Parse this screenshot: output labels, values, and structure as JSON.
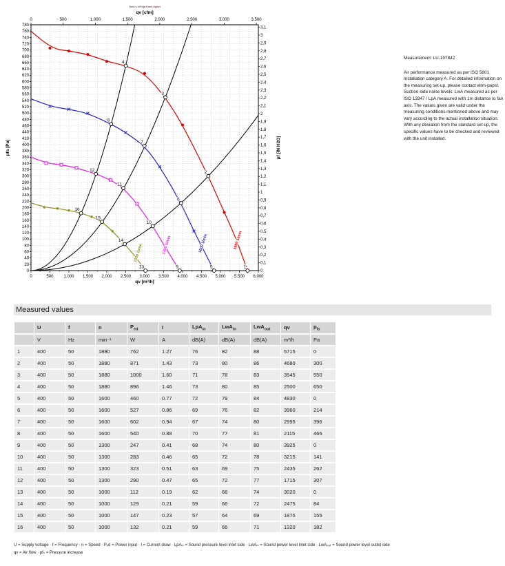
{
  "chart_data": {
    "type": "line",
    "micro_title": "Davt y h/Pdja Kiavt,Ugiert",
    "axes": {
      "top": {
        "label": "qv [cfm]",
        "min": 0,
        "max": 3500,
        "major": 500,
        "to_bottom_units": 1.699
      },
      "bottom": {
        "label": "qv [m³/h]",
        "min": 0,
        "max": 6000,
        "major": 500,
        "minor": 250
      },
      "left": {
        "label": "pfs [Pa]",
        "min": 0,
        "max": 780,
        "major": 20
      },
      "right": {
        "label": "pf [IN H2O]",
        "min": 0,
        "max": 3.1,
        "major": 0.1,
        "to_left_units": 249.089
      }
    },
    "grid": {
      "x_step": 250,
      "y_step": 20,
      "on": true
    },
    "legend_position": "labels-on-curves",
    "series": [
      {
        "name": "1880 1/min",
        "color": "#dd0000",
        "marker": "circle",
        "points": [
          [
            0,
            760
          ],
          [
            500,
            706
          ],
          [
            1000,
            697
          ],
          [
            1500,
            686
          ],
          [
            2000,
            664
          ],
          [
            2500,
            650
          ],
          [
            3000,
            626
          ],
          [
            3545,
            550
          ],
          [
            4000,
            462
          ],
          [
            4680,
            300
          ],
          [
            5100,
            185
          ],
          [
            5400,
            105
          ],
          [
            5715,
            0
          ]
        ],
        "markers": [
          [
            500,
            706
          ],
          [
            1000,
            697
          ],
          [
            1500,
            686
          ],
          [
            2000,
            664
          ],
          [
            3000,
            626
          ],
          [
            4000,
            462
          ],
          [
            5100,
            185
          ]
        ],
        "label_at": [
          5480,
          95
        ],
        "label_angle": -72
      },
      {
        "name": "1600 1/min",
        "color": "#2222cc",
        "marker": "cross",
        "points": [
          [
            0,
            545
          ],
          [
            500,
            521
          ],
          [
            1000,
            512
          ],
          [
            1500,
            499
          ],
          [
            2115,
            465
          ],
          [
            2500,
            438
          ],
          [
            2995,
            396
          ],
          [
            3400,
            330
          ],
          [
            3960,
            214
          ],
          [
            4300,
            125
          ],
          [
            4830,
            0
          ]
        ],
        "markers": [
          [
            500,
            521
          ],
          [
            1000,
            512
          ],
          [
            1500,
            499
          ],
          [
            2500,
            438
          ],
          [
            3400,
            330
          ],
          [
            4300,
            125
          ]
        ],
        "label_at": [
          4560,
          85
        ],
        "label_angle": -72
      },
      {
        "name": "1300 1/min",
        "color": "#e31ae3",
        "marker": "square",
        "points": [
          [
            0,
            360
          ],
          [
            400,
            341
          ],
          [
            800,
            336
          ],
          [
            1200,
            326
          ],
          [
            1715,
            307
          ],
          [
            2100,
            288
          ],
          [
            2435,
            262
          ],
          [
            2800,
            212
          ],
          [
            3215,
            141
          ],
          [
            3550,
            72
          ],
          [
            3925,
            0
          ]
        ],
        "markers": [
          [
            400,
            341
          ],
          [
            800,
            336
          ],
          [
            1200,
            326
          ],
          [
            2100,
            288
          ],
          [
            2800,
            212
          ],
          [
            3550,
            72
          ]
        ],
        "label_at": [
          3600,
          80
        ],
        "label_angle": -72
      },
      {
        "name": "1000 1/min",
        "color": "#8f8f1f",
        "marker": "dot",
        "points": [
          [
            0,
            215
          ],
          [
            350,
            201
          ],
          [
            700,
            197
          ],
          [
            1000,
            191
          ],
          [
            1320,
            182
          ],
          [
            1600,
            171
          ],
          [
            1875,
            155
          ],
          [
            2150,
            125
          ],
          [
            2475,
            84
          ],
          [
            2750,
            45
          ],
          [
            3020,
            0
          ]
        ],
        "markers": [
          [
            350,
            201
          ],
          [
            700,
            197
          ],
          [
            1000,
            191
          ],
          [
            1600,
            171
          ],
          [
            2150,
            125
          ],
          [
            2750,
            45
          ]
        ],
        "label_at": [
          2850,
          55
        ],
        "label_angle": -72
      }
    ],
    "system_curves": [
      {
        "k": 0.000104
      },
      {
        "k": 4.377e-05
      },
      {
        "k": 1.37e-05
      }
    ],
    "operating_points": [
      {
        "n": 1,
        "qv": 5715,
        "pfs": 0
      },
      {
        "n": 2,
        "qv": 4680,
        "pfs": 300
      },
      {
        "n": 3,
        "qv": 3545,
        "pfs": 550
      },
      {
        "n": 4,
        "qv": 2500,
        "pfs": 650
      },
      {
        "n": 5,
        "qv": 4830,
        "pfs": 0
      },
      {
        "n": 6,
        "qv": 3960,
        "pfs": 214
      },
      {
        "n": 7,
        "qv": 2995,
        "pfs": 396
      },
      {
        "n": 8,
        "qv": 2115,
        "pfs": 465
      },
      {
        "n": 9,
        "qv": 3925,
        "pfs": 0
      },
      {
        "n": 10,
        "qv": 3215,
        "pfs": 141
      },
      {
        "n": 11,
        "qv": 2435,
        "pfs": 262
      },
      {
        "n": 12,
        "qv": 1715,
        "pfs": 307
      },
      {
        "n": 13,
        "qv": 3020,
        "pfs": 0
      },
      {
        "n": 14,
        "qv": 2475,
        "pfs": 84
      },
      {
        "n": 15,
        "qv": 1875,
        "pfs": 155
      },
      {
        "n": 16,
        "qv": 1320,
        "pfs": 182
      }
    ]
  },
  "note": {
    "measurement": "Measurement: LU-107842",
    "body": "Air performance measured as per ISO 5801 Installation category A. For detailed information on the measuring set-up, please contact ebm-papst. Suction-side noise levels: LwA measured as per ISO 13347 / LpA measured with 1m distance to fan axis. The values given are valid under the measuring conditions mentioned above and may vary according to the actual installation situation. With any deviation from the standard set-up, the specific values have to be checked and reviewed with the unit installed."
  },
  "table": {
    "title": "Measured values",
    "columns": [
      {
        "t": "",
        "s": ""
      },
      {
        "t": "U",
        "s": ""
      },
      {
        "t": "f",
        "s": ""
      },
      {
        "t": "n",
        "s": ""
      },
      {
        "t": "P",
        "s": "ed"
      },
      {
        "t": "I",
        "s": ""
      },
      {
        "t": "LpA",
        "s": "in"
      },
      {
        "t": "LwA",
        "s": "in"
      },
      {
        "t": "LwA",
        "s": "out"
      },
      {
        "t": "qv",
        "s": ""
      },
      {
        "t": "p",
        "s": "fs"
      }
    ],
    "units": [
      "",
      "V",
      "Hz",
      "min⁻¹",
      "W",
      "A",
      "dB(A)",
      "dB(A)",
      "dB(A)",
      "m³/h",
      "Pa"
    ],
    "rows": [
      [
        "1",
        "400",
        "50",
        "1880",
        "762",
        "1.27",
        "76",
        "82",
        "88",
        "5715",
        "0"
      ],
      [
        "2",
        "400",
        "50",
        "1880",
        "871",
        "1.43",
        "73",
        "80",
        "86",
        "4680",
        "300"
      ],
      [
        "3",
        "400",
        "50",
        "1880",
        "1000",
        "1.60",
        "71",
        "78",
        "83",
        "3545",
        "550"
      ],
      [
        "4",
        "400",
        "50",
        "1880",
        "896",
        "1.46",
        "73",
        "80",
        "85",
        "2500",
        "650"
      ],
      [
        "5",
        "400",
        "50",
        "1600",
        "460",
        "0.77",
        "72",
        "79",
        "84",
        "4830",
        "0"
      ],
      [
        "6",
        "400",
        "50",
        "1600",
        "527",
        "0.86",
        "69",
        "76",
        "82",
        "3960",
        "214"
      ],
      [
        "7",
        "400",
        "50",
        "1600",
        "602",
        "0.94",
        "67",
        "74",
        "80",
        "2995",
        "396"
      ],
      [
        "8",
        "400",
        "50",
        "1600",
        "540",
        "0.88",
        "70",
        "77",
        "81",
        "2115",
        "465"
      ],
      [
        "9",
        "400",
        "50",
        "1300",
        "247",
        "0.41",
        "68",
        "74",
        "80",
        "3925",
        "0"
      ],
      [
        "10",
        "400",
        "50",
        "1300",
        "283",
        "0.46",
        "65",
        "72",
        "78",
        "3215",
        "141"
      ],
      [
        "11",
        "400",
        "50",
        "1300",
        "323",
        "0.51",
        "63",
        "69",
        "75",
        "2435",
        "262"
      ],
      [
        "12",
        "400",
        "50",
        "1300",
        "290",
        "0.47",
        "65",
        "72",
        "77",
        "1715",
        "307"
      ],
      [
        "13",
        "400",
        "50",
        "1000",
        "112",
        "0.19",
        "62",
        "68",
        "74",
        "3020",
        "0"
      ],
      [
        "14",
        "400",
        "50",
        "1000",
        "129",
        "0.21",
        "59",
        "66",
        "72",
        "2475",
        "84"
      ],
      [
        "15",
        "400",
        "50",
        "1000",
        "147",
        "0.23",
        "57",
        "64",
        "69",
        "1875",
        "155"
      ],
      [
        "16",
        "400",
        "50",
        "1000",
        "132",
        "0.21",
        "59",
        "66",
        "71",
        "1320",
        "182"
      ]
    ]
  },
  "footnotes": [
    "U = Supply voltage · f = Frequency · n = Speed · Pₑd = Power input · I = Current draw · LpAᵢₙ = Sound pressure level inlet side · LwAᵢₙ = Sound power level inlet side · LwAₒᵤₜ = Sound power level outlet side",
    "qv = Air flow · pfₛ = Pressure increase"
  ]
}
